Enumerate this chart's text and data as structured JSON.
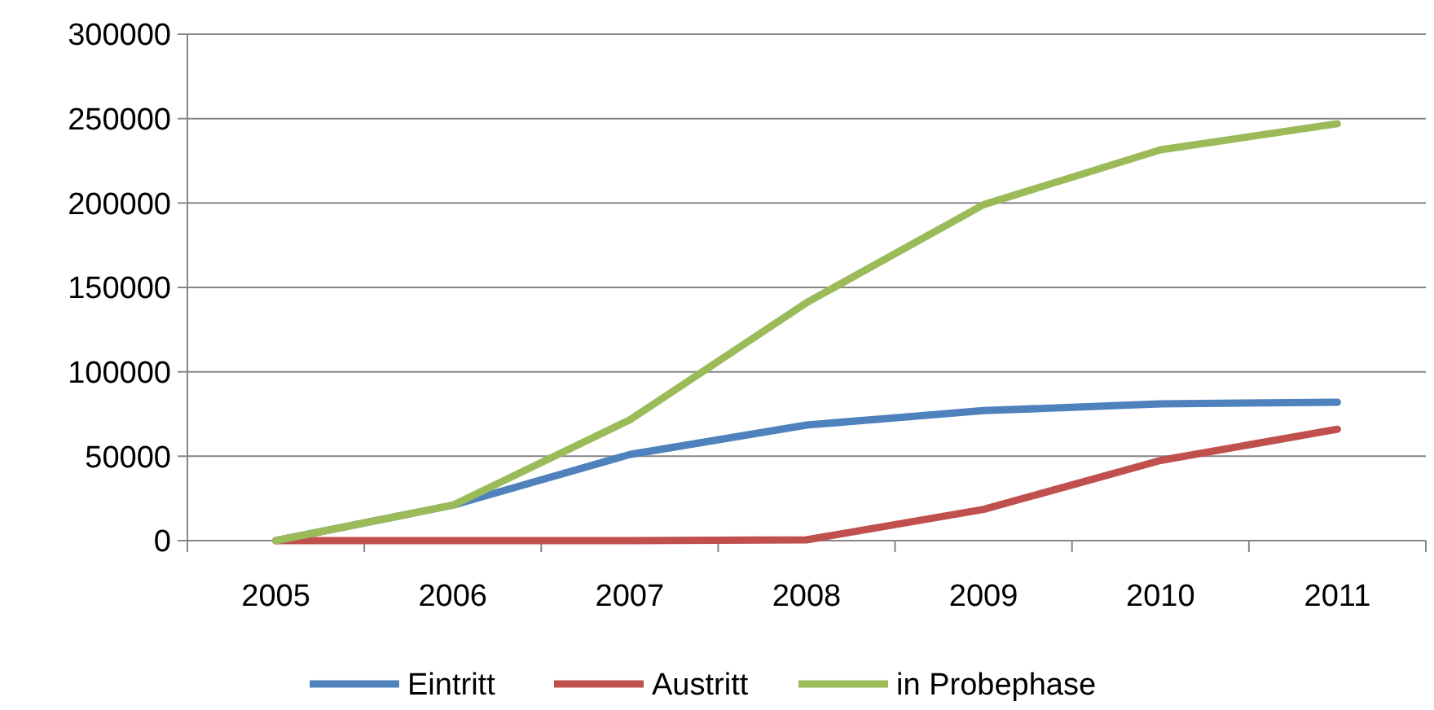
{
  "chart_data": {
    "type": "line",
    "categories": [
      "2005",
      "2006",
      "2007",
      "2008",
      "2009",
      "2010",
      "2011"
    ],
    "series": [
      {
        "name": "Eintritt",
        "color": "#4f81bd",
        "values": [
          0,
          21000,
          51000,
          68500,
          77000,
          81000,
          82000
        ]
      },
      {
        "name": "Austritt",
        "color": "#c0504d",
        "values": [
          0,
          0,
          0,
          500,
          18500,
          47500,
          66000
        ]
      },
      {
        "name": "in Probephase",
        "color": "#9bbb59",
        "values": [
          0,
          21000,
          71500,
          141000,
          199000,
          231500,
          247000
        ]
      }
    ],
    "ylim": [
      0,
      300000
    ],
    "yticks": [
      0,
      50000,
      100000,
      150000,
      200000,
      250000,
      300000
    ],
    "grid": "y",
    "legend": "bottom",
    "marker": "none",
    "line_style": "solid"
  }
}
